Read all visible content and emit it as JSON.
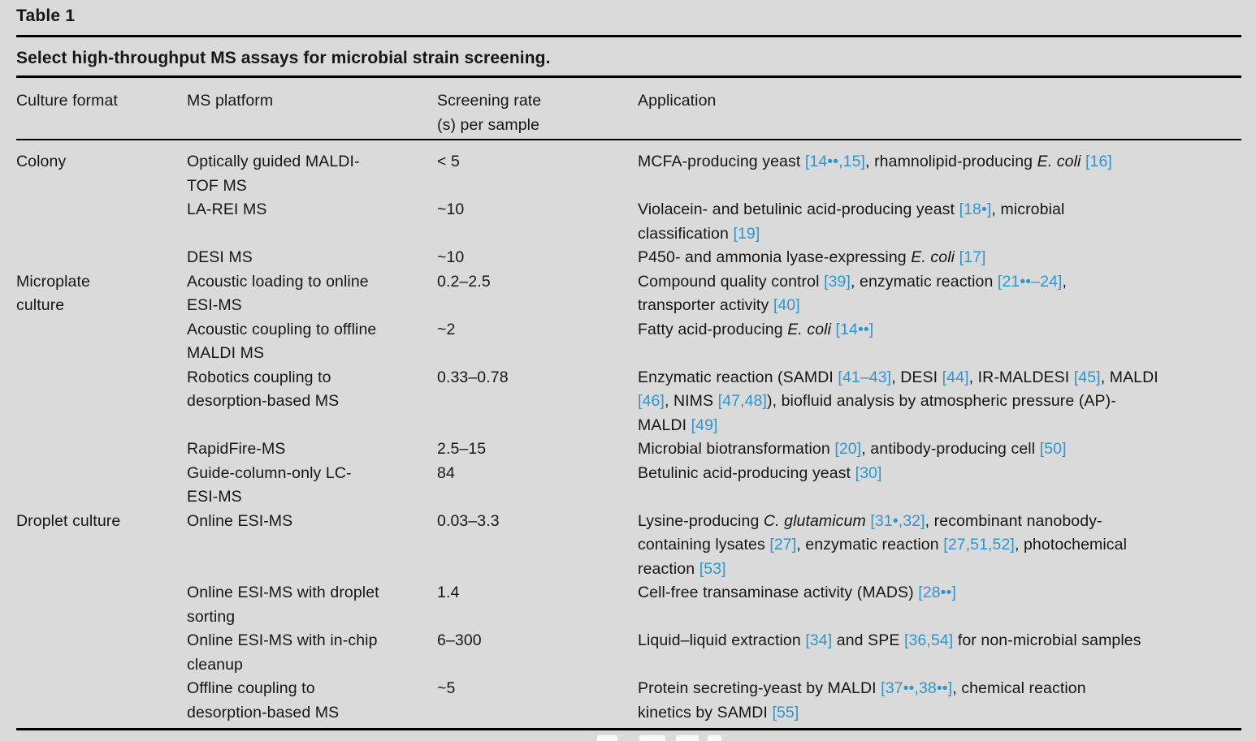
{
  "page": {
    "background": "#dadada",
    "text_color": "#161616",
    "rule_color": "#000000",
    "citation_color": "#2e96d1"
  },
  "table": {
    "label": "Table 1",
    "caption": "Select high-throughput MS assays for microbial strain screening.",
    "columns": [
      {
        "key": "format",
        "label": "Culture format"
      },
      {
        "key": "platform",
        "label": "MS platform"
      },
      {
        "key": "rate",
        "label": "Screening rate\n(s) per sample"
      },
      {
        "key": "application",
        "label": "Application"
      }
    ],
    "rows": [
      {
        "format": "Colony",
        "platform": "Optically guided MALDI-\nTOF MS",
        "rate": "< 5",
        "application": "MCFA-producing yeast [[14••,15]], rhamnolipid-producing {{E. coli}} [[16]]"
      },
      {
        "format": "",
        "platform": "LA-REI MS",
        "rate": "~10",
        "application": "Violacein- and betulinic acid-producing yeast [[18•]], microbial\nclassification [[19]]"
      },
      {
        "format": "",
        "platform": "DESI MS",
        "rate": "~10",
        "application": "P450- and ammonia lyase-expressing {{E. coli}} [[17]]"
      },
      {
        "format": "Microplate\nculture",
        "platform": "Acoustic loading to online\nESI-MS",
        "rate": "0.2–2.5",
        "application": "Compound quality control [[39]], enzymatic reaction [[21••–24]],\ntransporter activity [[40]]"
      },
      {
        "format": "",
        "platform": "Acoustic coupling to offline\nMALDI MS",
        "rate": "~2",
        "application": "Fatty acid-producing {{E. coli}} [[14••]]"
      },
      {
        "format": "",
        "platform": "Robotics coupling to\ndesorption-based MS",
        "rate": "0.33–0.78",
        "application": "Enzymatic reaction (SAMDI [[41–43]], DESI [[44]], IR-MALDESI [[45]], MALDI\n[[46]], NIMS [[47,48]]), biofluid analysis by atmospheric pressure (AP)-\nMALDI [[49]]"
      },
      {
        "format": "",
        "platform": "RapidFire-MS",
        "rate": "2.5–15",
        "application": "Microbial biotransformation [[20]], antibody-producing cell [[50]]"
      },
      {
        "format": "",
        "platform": "Guide-column-only LC-\nESI-MS",
        "rate": "84",
        "application": "Betulinic acid-producing yeast [[30]]"
      },
      {
        "format": "Droplet culture",
        "platform": "Online ESI-MS",
        "rate": "0.03–3.3",
        "application": "Lysine-producing {{C. glutamicum}} [[31•,32]], recombinant nanobody-\ncontaining lysates [[27]], enzymatic reaction [[27,51,52]], photochemical\nreaction [[53]]"
      },
      {
        "format": "",
        "platform": "Online ESI-MS with droplet\nsorting",
        "rate": "1.4",
        "application": "Cell-free transaminase activity (MADS) [[28••]]"
      },
      {
        "format": "",
        "platform": "Online ESI-MS with in-chip\ncleanup",
        "rate": "6–300",
        "application": "Liquid–liquid extraction [[34]] and SPE [[36,54]] for non-microbial samples"
      },
      {
        "format": "",
        "platform": "Offline coupling to\ndesorption-based MS",
        "rate": "~5",
        "application": "Protein secreting-yeast by MALDI [[37••,38••]], chemical reaction\nkinetics by SAMDI [[55]]"
      }
    ]
  }
}
